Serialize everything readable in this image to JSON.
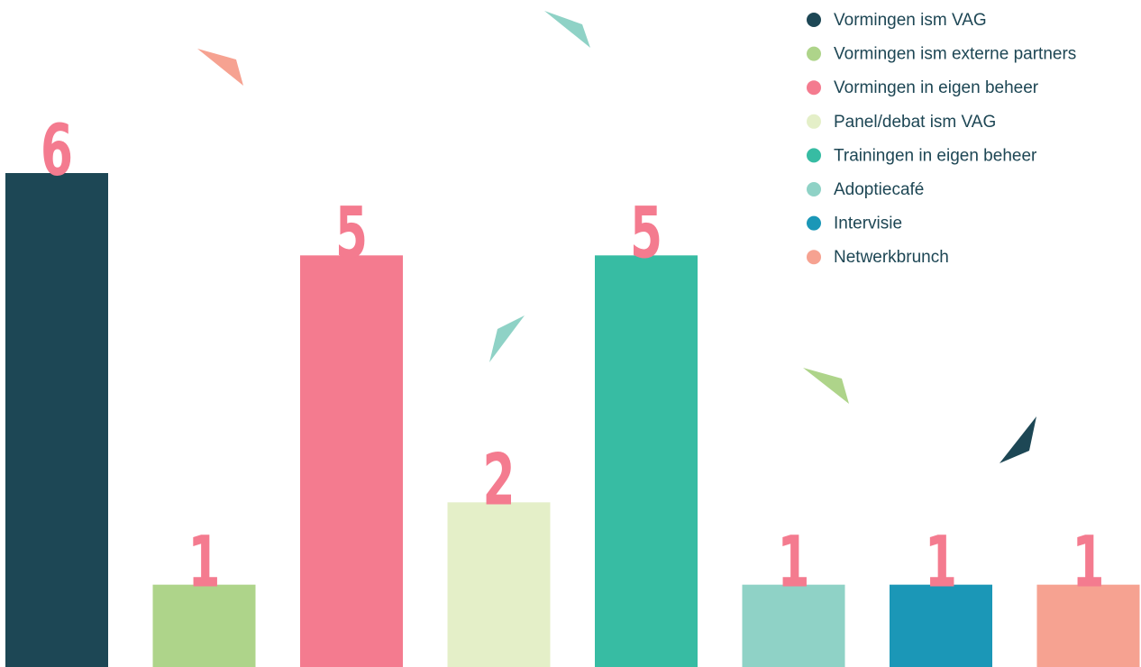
{
  "chart_data": {
    "type": "bar",
    "categories": [
      "Vormingen ism VAG",
      "Vormingen ism externe partners",
      "Vormingen in eigen beheer",
      "Panel/debat ism VAG",
      "Trainingen in eigen beheer",
      "Adoptiecafé",
      "Intervisie",
      "Netwerkbrunch"
    ],
    "values": [
      6,
      1,
      5,
      2,
      5,
      1,
      1,
      1
    ],
    "colors": [
      "#1d4755",
      "#aed48a",
      "#f47b8f",
      "#e4efc8",
      "#37bca3",
      "#8fd2c6",
      "#1b97b7",
      "#f6a291"
    ],
    "legend": "top-right"
  }
}
